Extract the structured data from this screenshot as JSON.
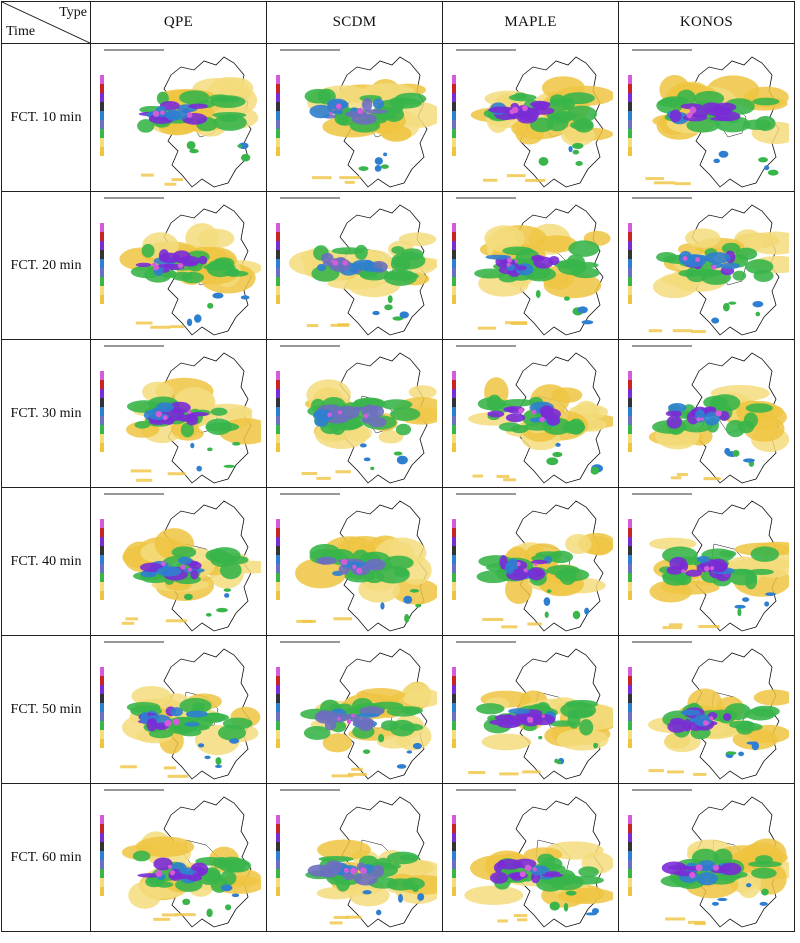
{
  "header": {
    "type_label": "Type",
    "time_label": "Time"
  },
  "columns": [
    "QPE",
    "SCDM",
    "MAPLE",
    "KONOS"
  ],
  "rows": [
    "FCT. 10 min",
    "FCT. 20 min",
    "FCT. 30 min",
    "FCT. 40 min",
    "FCT. 50 min",
    "FCT. 60 min"
  ],
  "colors": {
    "border": "#222222",
    "land": "#ffffff",
    "coastline": "#111111",
    "precip_low": "#efc441",
    "precip_light": "#f3dc7c",
    "precip_moderate": "#39b54a",
    "precip_heavy": "#2f7fd0",
    "precip_very_heavy": "#7a2bd6",
    "precip_extreme": "#d45cd8",
    "advection_blue": "#6d6fbf"
  }
}
